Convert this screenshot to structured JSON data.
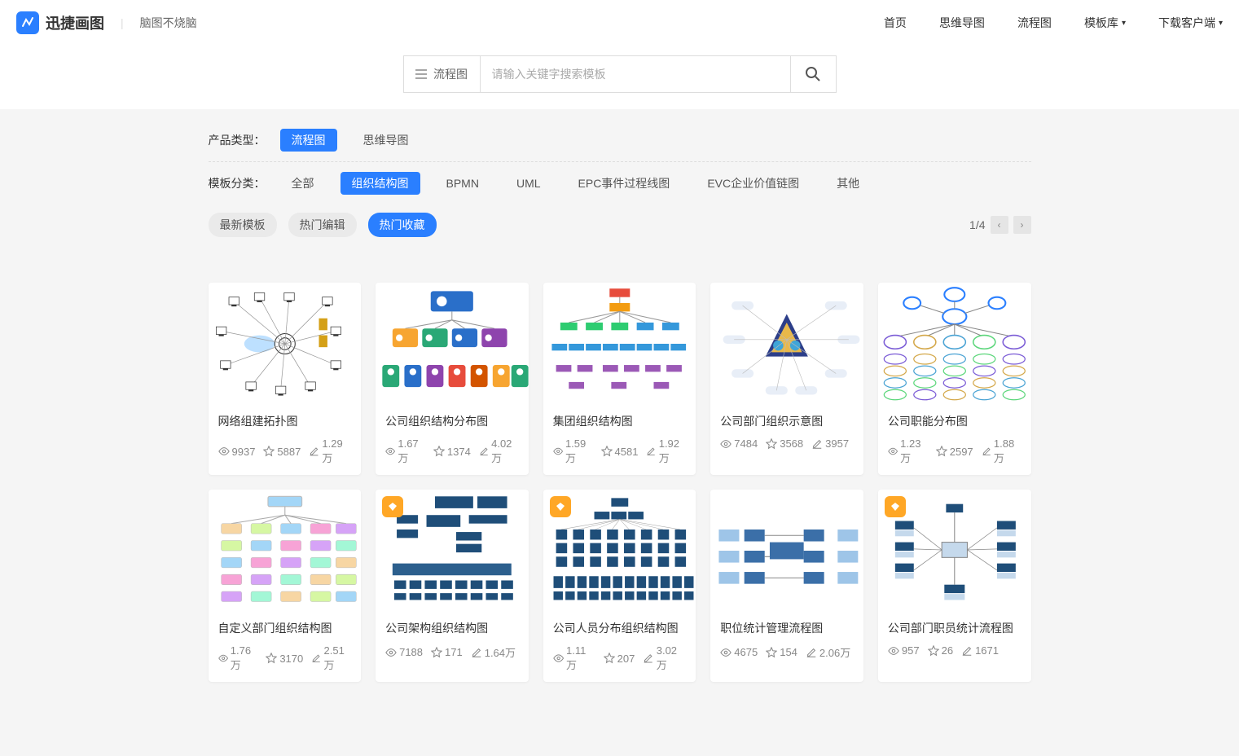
{
  "brand": {
    "name": "迅捷画图",
    "tagline": "脑图不烧脑"
  },
  "nav": {
    "home": "首页",
    "mindmap": "思维导图",
    "flowchart": "流程图",
    "library": "模板库",
    "download": "下载客户端"
  },
  "search": {
    "type_label": "流程图",
    "placeholder": "请输入关键字搜索模板"
  },
  "filters": {
    "product_label": "产品类型：",
    "products": [
      {
        "label": "流程图",
        "active": true
      },
      {
        "label": "思维导图",
        "active": false
      }
    ],
    "category_label": "模板分类：",
    "categories": [
      {
        "label": "全部",
        "active": false
      },
      {
        "label": "组织结构图",
        "active": true
      },
      {
        "label": "BPMN",
        "active": false
      },
      {
        "label": "UML",
        "active": false
      },
      {
        "label": "EPC事件过程线图",
        "active": false
      },
      {
        "label": "EVC企业价值链图",
        "active": false
      },
      {
        "label": "其他",
        "active": false
      }
    ]
  },
  "sort": {
    "options": [
      {
        "label": "最新模板",
        "active": false
      },
      {
        "label": "热门编辑",
        "active": false
      },
      {
        "label": "热门收藏",
        "active": true
      }
    ],
    "page": "1/4"
  },
  "colors": {
    "primary": "#2a7fff",
    "bg": "#f5f5f5",
    "card_bg": "#ffffff",
    "text": "#333333",
    "muted": "#888888",
    "badge": "#ffa726"
  },
  "cards": [
    {
      "title": "网络组建拓扑图",
      "views": "9937",
      "stars": "5887",
      "edits": "1.29万",
      "badge": false,
      "thumb": "network"
    },
    {
      "title": "公司组织结构分布图",
      "views": "1.67万",
      "stars": "1374",
      "edits": "4.02万",
      "badge": false,
      "thumb": "orgcolor"
    },
    {
      "title": "集团组织结构图",
      "views": "1.59万",
      "stars": "4581",
      "edits": "1.92万",
      "badge": false,
      "thumb": "grouporg"
    },
    {
      "title": "公司部门组织示意图",
      "views": "7484",
      "stars": "3568",
      "edits": "3957",
      "badge": false,
      "thumb": "triangle"
    },
    {
      "title": "公司职能分布图",
      "views": "1.23万",
      "stars": "2597",
      "edits": "1.88万",
      "badge": false,
      "thumb": "bubbles"
    },
    {
      "title": "自定义部门组织结构图",
      "views": "1.76万",
      "stars": "3170",
      "edits": "2.51万",
      "badge": false,
      "thumb": "pastel"
    },
    {
      "title": "公司架构组织结构图",
      "views": "7188",
      "stars": "171",
      "edits": "1.64万",
      "badge": true,
      "thumb": "navy"
    },
    {
      "title": "公司人员分布组织结构图",
      "views": "1.11万",
      "stars": "207",
      "edits": "3.02万",
      "badge": true,
      "thumb": "navygrid"
    },
    {
      "title": "职位统计管理流程图",
      "views": "4675",
      "stars": "154",
      "edits": "2.06万",
      "badge": false,
      "thumb": "bluewide"
    },
    {
      "title": "公司部门职员统计流程图",
      "views": "957",
      "stars": "26",
      "edits": "1671",
      "badge": true,
      "thumb": "bluesym"
    }
  ],
  "thumbs": {
    "network": {
      "type": "network",
      "node_color": "#333",
      "cloud": "#bde0ff",
      "server_color": "#d4a017"
    },
    "orgcolor": {
      "type": "org",
      "root": "#2a6fc9",
      "row_colors": [
        "#f7a531",
        "#2aa876",
        "#2a6fc9",
        "#8e44ad",
        "#e74c3c",
        "#d35400"
      ],
      "avatar": "#ffffff"
    },
    "grouporg": {
      "type": "tree",
      "root": "#e74c3c",
      "l1": "#f39c12",
      "l2a": "#2ecc71",
      "l2b": "#3498db",
      "leaf": "#9b59b6"
    },
    "triangle": {
      "type": "triangle",
      "tri_colors": [
        "#2c3e89",
        "#e8b84a",
        "#3fa5d8"
      ],
      "pill": "#e8eef7"
    },
    "bubbles": {
      "type": "bubbles",
      "ring": "#2a7fff",
      "ovals": [
        "#7b5cd6",
        "#d4a84a",
        "#4aa3d4",
        "#5cd67b"
      ]
    },
    "pastel": {
      "type": "org",
      "colors": [
        "#f7d6a3",
        "#d6f7a3",
        "#a3d6f7",
        "#f7a3d6",
        "#d6a3f7",
        "#a3f7d6"
      ],
      "border": "#bbb"
    },
    "navy": {
      "type": "navy",
      "block": "#1f4e79",
      "bar": "#2c5f8d"
    },
    "navygrid": {
      "type": "navygrid",
      "block": "#1f4e79"
    },
    "bluewide": {
      "type": "bluewide",
      "block": "#3b6fa8",
      "light": "#9ec5e8"
    },
    "bluesym": {
      "type": "bluesym",
      "block": "#1f4e79",
      "light": "#c5d9ec"
    }
  }
}
